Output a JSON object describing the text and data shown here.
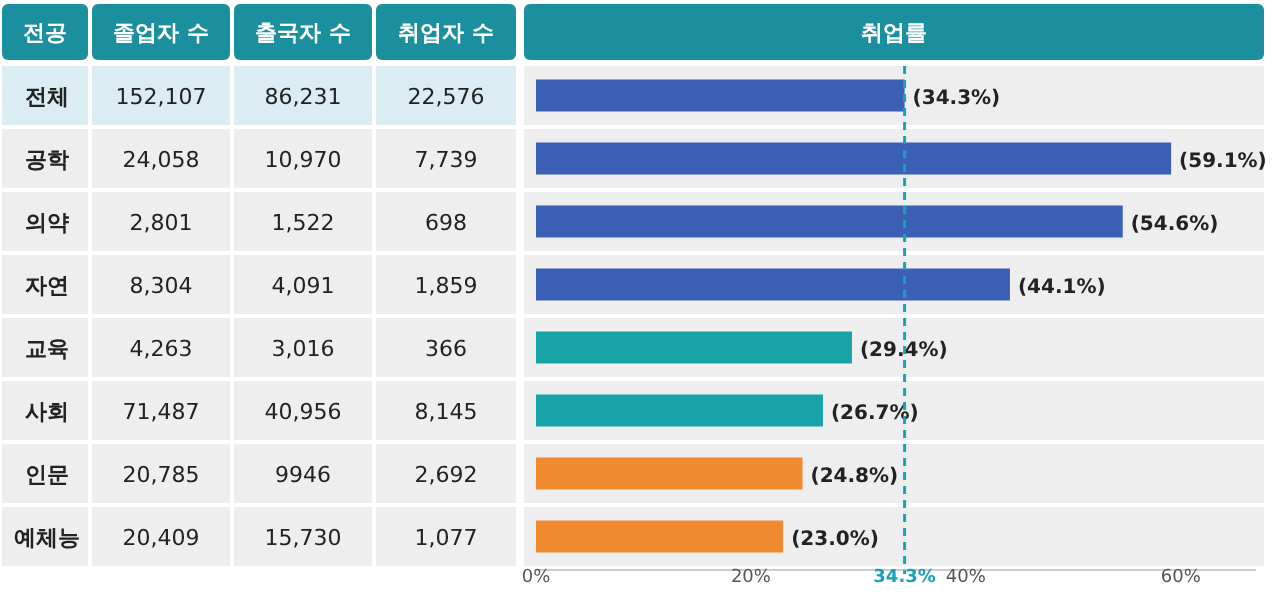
{
  "chart_data": [
    {
      "type": "other",
      "ylabel": "전공",
      "categories": [
        "전체",
        "공학",
        "의약",
        "자연",
        "교육",
        "사회",
        "인문",
        "예체능"
      ],
      "data_labels": true,
      "series": [
        {
          "name": "졸업자 수",
          "colors": [
            "#dbecf3",
            "#eeeeee",
            "#eeeeee",
            "#eeeeee",
            "#eeeeee",
            "#eeeeee",
            "#eeeeee",
            "#eeeeee"
          ],
          "values": [
            152107,
            24058,
            2801,
            8304,
            4263,
            71487,
            20785,
            20409
          ],
          "value_labels": [
            "152,107",
            "24,058",
            "2,801",
            "8,304",
            "4,263",
            "71,487",
            "20,785",
            "20,409"
          ]
        },
        {
          "name": "출국자 수",
          "colors": [
            "#dbecf3",
            "#eeeeee",
            "#eeeeee",
            "#eeeeee",
            "#eeeeee",
            "#eeeeee",
            "#eeeeee",
            "#eeeeee"
          ],
          "values": [
            86231,
            10970,
            1522,
            4091,
            3016,
            40956,
            9946,
            15730
          ],
          "value_labels": [
            "86,231",
            "10,970",
            "1,522",
            "4,091",
            "3,016",
            "40,956",
            "9946",
            "15,730"
          ]
        },
        {
          "name": "취업자 수",
          "colors": [
            "#dbecf3",
            "#eeeeee",
            "#eeeeee",
            "#eeeeee",
            "#eeeeee",
            "#eeeeee",
            "#eeeeee",
            "#eeeeee"
          ],
          "values": [
            22576,
            7739,
            698,
            1859,
            366,
            8145,
            2692,
            1077
          ],
          "value_labels": [
            "22,576",
            "7,739",
            "698",
            "1,859",
            "366",
            "8,145",
            "2,692",
            "1,077"
          ]
        }
      ]
    },
    {
      "type": "bar",
      "orientation": "horizontal",
      "title": "취업률",
      "categories": [
        null,
        null,
        null,
        null,
        null,
        null,
        null,
        null
      ],
      "values": [
        34.3,
        59.1,
        54.6,
        44.1,
        29.4,
        26.7,
        24.8,
        23.0
      ],
      "colors": [
        "#3b5fb4",
        "#3b5fb4",
        "#3b5fb4",
        "#3b5fb4",
        "#17a3a8",
        "#17a3a8",
        "#ef8a30",
        "#ef8a30"
      ],
      "value_labels": [
        "(34.3%)",
        "(59.1%)",
        "(54.6%)",
        "(44.1%)",
        "(29.4%)",
        "(26.7%)",
        "(24.8%)",
        "(23.0%)"
      ],
      "xlim": [
        0,
        67
      ],
      "xticks": [
        {
          "value": 0,
          "label": "0%"
        },
        {
          "value": 20,
          "label": "20%"
        },
        {
          "value": 40,
          "label": "40%"
        },
        {
          "value": 60,
          "label": "60%"
        }
      ],
      "ref_lines": [
        {
          "axis": "x",
          "value": 34.3,
          "label": "34.3%",
          "color": "#1aa0b8",
          "line_style": "dashed"
        }
      ]
    }
  ]
}
